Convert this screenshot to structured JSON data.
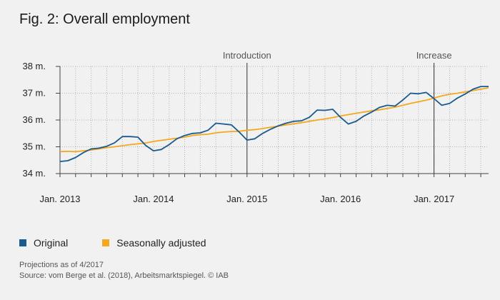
{
  "title": "Fig. 2: Overall employment",
  "legend": {
    "original_label": "Original",
    "adjusted_label": "Seasonally adjusted",
    "original_color": "#1a5a8e",
    "adjusted_color": "#f4a81d"
  },
  "notes": {
    "line1": "Projections as of 4/2017",
    "line2": "Source: vom Berge et al. (2018), Arbeitsmarktspiegel. © IAB"
  },
  "chart_data": {
    "type": "line",
    "x_start": "Jan. 2013",
    "x_frequency": "monthly",
    "x_tick_labels": [
      "Jan. 2013",
      "Jan. 2014",
      "Jan. 2015",
      "Jan. 2016",
      "Jan. 2017"
    ],
    "y_tick_labels": [
      "34 m.",
      "35 m.",
      "36 m.",
      "37 m.",
      "38 m."
    ],
    "y_ticks": [
      34,
      35,
      36,
      37,
      38
    ],
    "ylim": [
      34,
      38
    ],
    "grid": true,
    "annotations": [
      {
        "label": "Introduction",
        "x": "Jan. 2015"
      },
      {
        "label": "Increase",
        "x": "Jan. 2017"
      }
    ],
    "series": [
      {
        "name": "Original",
        "color": "#1a5a8e",
        "values": [
          34.45,
          34.48,
          34.6,
          34.78,
          34.92,
          34.95,
          35.02,
          35.15,
          35.38,
          35.38,
          35.36,
          35.05,
          34.85,
          34.9,
          35.08,
          35.3,
          35.42,
          35.5,
          35.52,
          35.62,
          35.88,
          35.85,
          35.82,
          35.55,
          35.25,
          35.3,
          35.5,
          35.65,
          35.78,
          35.88,
          35.95,
          35.97,
          36.1,
          36.37,
          36.36,
          36.4,
          36.1,
          35.85,
          35.95,
          36.15,
          36.3,
          36.47,
          36.55,
          36.52,
          36.75,
          37.0,
          36.98,
          37.03,
          36.8,
          36.55,
          36.62,
          36.82,
          36.97,
          37.15,
          37.25,
          37.25
        ]
      },
      {
        "name": "Seasonally adjusted",
        "color": "#f4a81d",
        "values": [
          34.82,
          34.83,
          34.82,
          34.85,
          34.88,
          34.92,
          34.97,
          35.0,
          35.04,
          35.08,
          35.11,
          35.14,
          35.2,
          35.24,
          35.28,
          35.32,
          35.36,
          35.42,
          35.45,
          35.47,
          35.52,
          35.55,
          35.57,
          35.58,
          35.62,
          35.64,
          35.68,
          35.73,
          35.77,
          35.82,
          35.86,
          35.9,
          35.95,
          36.0,
          36.04,
          36.09,
          36.15,
          36.2,
          36.25,
          36.3,
          36.34,
          36.38,
          36.43,
          36.48,
          36.55,
          36.62,
          36.68,
          36.74,
          36.82,
          36.9,
          36.96,
          37.0,
          37.05,
          37.1,
          37.15,
          37.2
        ]
      }
    ]
  }
}
